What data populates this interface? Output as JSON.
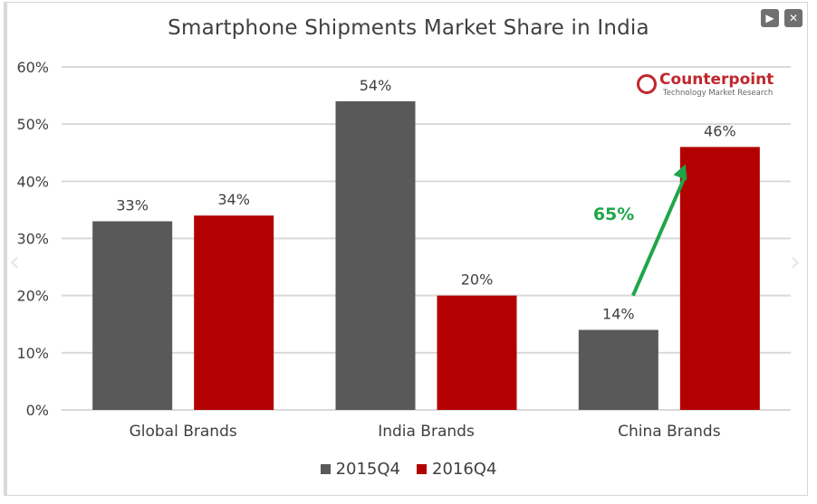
{
  "window": {
    "controls": [
      {
        "name": "play",
        "glyph": "▶"
      },
      {
        "name": "close",
        "glyph": "✕"
      }
    ],
    "nav_prev_glyph": "‹",
    "nav_next_glyph": "›"
  },
  "logo": {
    "name": "Counterpoint",
    "tagline": "Technology Market Research",
    "color": "#c0272d"
  },
  "chart_data": {
    "type": "bar",
    "title": "Smartphone Shipments Market Share in India",
    "categories": [
      "Global Brands",
      "India Brands",
      "China Brands"
    ],
    "series": [
      {
        "name": "2015Q4",
        "color": "#595959",
        "values": [
          33,
          54,
          14
        ],
        "labels": [
          "33%",
          "54%",
          "14%"
        ]
      },
      {
        "name": "2016Q4",
        "color": "#b30000",
        "values": [
          34,
          20,
          46
        ],
        "labels": [
          "34%",
          "20%",
          "46%"
        ]
      }
    ],
    "ylim": [
      0,
      60
    ],
    "yticks": [
      0,
      10,
      20,
      30,
      40,
      50,
      60
    ],
    "ytick_labels": [
      "0%",
      "10%",
      "20%",
      "30%",
      "40%",
      "50%",
      "60%"
    ],
    "grid": true,
    "legend": "bottom",
    "annotation": {
      "text": "65%",
      "color": "#1fa64a",
      "from_category": "China Brands",
      "from_value": 20,
      "to_value": 43
    }
  }
}
